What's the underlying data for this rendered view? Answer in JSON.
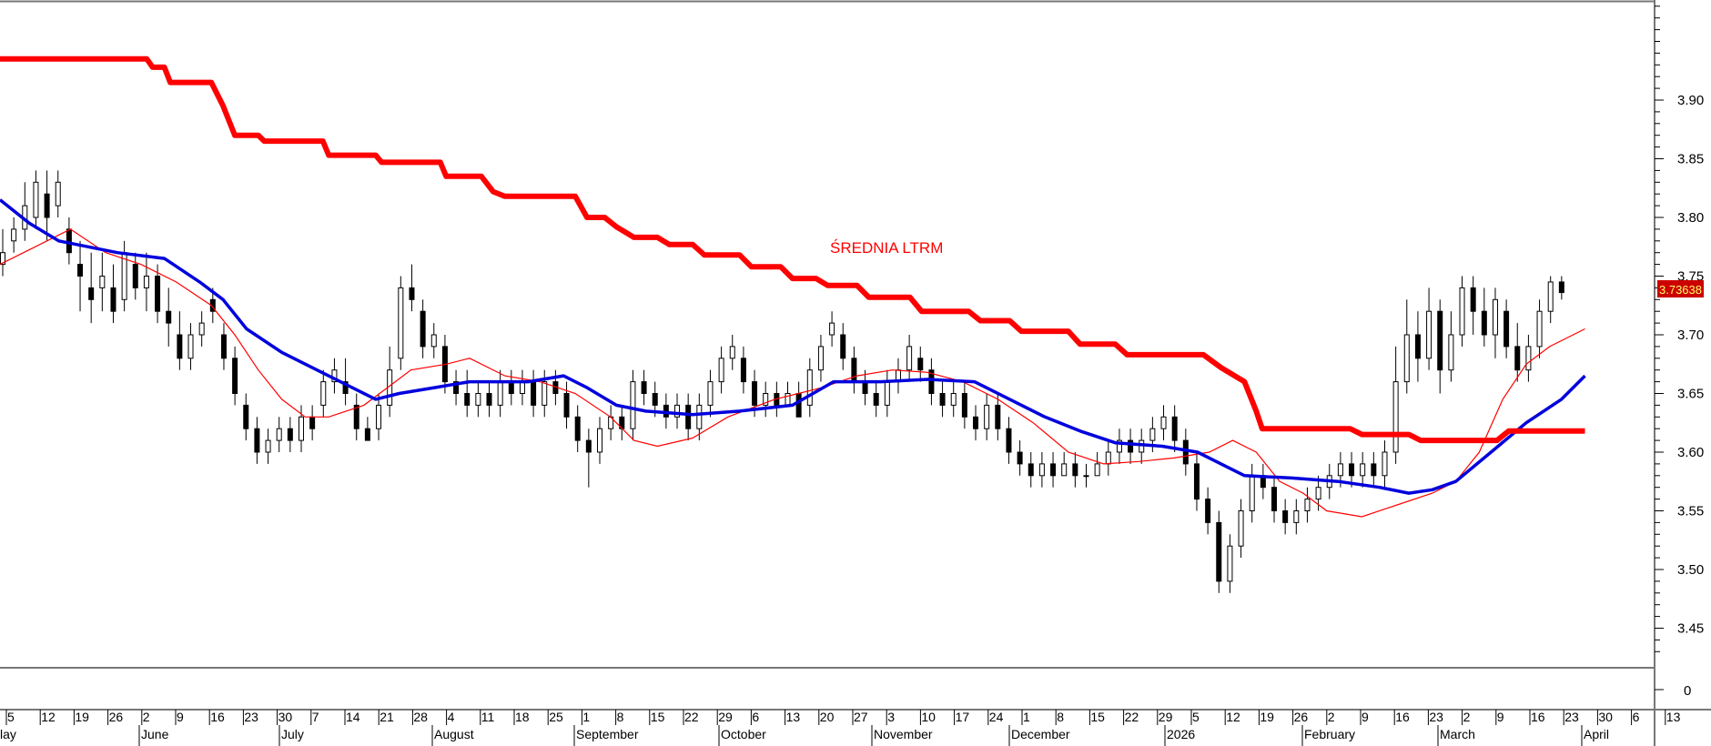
{
  "chart_data": {
    "type": "candlestick",
    "annotation": "ŚREDNIA LTRM",
    "last_price_label": "3.73638",
    "colors": {
      "ltrm_line": "#ff0000",
      "annotation": "#ff0000",
      "ma_long": "#0000dd",
      "ma_short": "#ff0000",
      "candle": "#000000",
      "price_label_bg": "#cc0000",
      "price_label_text": "#ffff66"
    },
    "price_axis": {
      "ticks": [
        "3.90",
        "3.85",
        "3.80",
        "3.75",
        "3.70",
        "3.65",
        "3.60",
        "3.55",
        "3.50",
        "3.45"
      ],
      "range": [
        3.4,
        3.99
      ]
    },
    "volume_axis": {
      "ticks": [
        "0"
      ]
    },
    "date_ticks": [
      "5",
      "12",
      "19",
      "26",
      "2",
      "9",
      "16",
      "23",
      "30",
      "7",
      "14",
      "21",
      "28",
      "4",
      "11",
      "18",
      "25",
      "1",
      "8",
      "15",
      "22",
      "29",
      "6",
      "13",
      "20",
      "27",
      "3",
      "10",
      "17",
      "24",
      "1",
      "8",
      "15",
      "22",
      "29",
      "5",
      "12",
      "19",
      "26",
      "2",
      "9",
      "16",
      "23",
      "2",
      "9",
      "16",
      "23",
      "30",
      "6",
      "13"
    ],
    "months": [
      "lay",
      "June",
      "July",
      "August",
      "September",
      "October",
      "November",
      "December",
      "2026",
      "February",
      "March",
      "April"
    ],
    "ltrm_line": [
      [
        0,
        3.935
      ],
      [
        25,
        3.935
      ],
      [
        26,
        3.928
      ],
      [
        28,
        3.928
      ],
      [
        29,
        3.915
      ],
      [
        36,
        3.915
      ],
      [
        38,
        3.895
      ],
      [
        40,
        3.87
      ],
      [
        44,
        3.87
      ],
      [
        45,
        3.865
      ],
      [
        55,
        3.865
      ],
      [
        56,
        3.853
      ],
      [
        64,
        3.853
      ],
      [
        65,
        3.847
      ],
      [
        75,
        3.847
      ],
      [
        76,
        3.835
      ],
      [
        82,
        3.835
      ],
      [
        84,
        3.822
      ],
      [
        86,
        3.818
      ],
      [
        98,
        3.818
      ],
      [
        100,
        3.8
      ],
      [
        103,
        3.8
      ],
      [
        105,
        3.792
      ],
      [
        108,
        3.783
      ],
      [
        112,
        3.783
      ],
      [
        114,
        3.777
      ],
      [
        118,
        3.777
      ],
      [
        120,
        3.768
      ],
      [
        126,
        3.768
      ],
      [
        128,
        3.758
      ],
      [
        133,
        3.758
      ],
      [
        135,
        3.748
      ],
      [
        139,
        3.748
      ],
      [
        141,
        3.742
      ],
      [
        146,
        3.742
      ],
      [
        148,
        3.732
      ],
      [
        155,
        3.732
      ],
      [
        157,
        3.72
      ],
      [
        165,
        3.72
      ],
      [
        167,
        3.712
      ],
      [
        172,
        3.712
      ],
      [
        174,
        3.703
      ],
      [
        182,
        3.703
      ],
      [
        184,
        3.692
      ],
      [
        190,
        3.692
      ],
      [
        192,
        3.683
      ],
      [
        205,
        3.683
      ],
      [
        208,
        3.672
      ],
      [
        212,
        3.66
      ],
      [
        214,
        3.635
      ],
      [
        215,
        3.62
      ],
      [
        230,
        3.62
      ],
      [
        232,
        3.615
      ],
      [
        240,
        3.615
      ],
      [
        242,
        3.61
      ],
      [
        255,
        3.61
      ],
      [
        257,
        3.618
      ],
      [
        270,
        3.618
      ]
    ],
    "ma_long_line": [
      [
        0,
        3.815
      ],
      [
        5,
        3.795
      ],
      [
        10,
        3.78
      ],
      [
        20,
        3.77
      ],
      [
        28,
        3.765
      ],
      [
        34,
        3.745
      ],
      [
        38,
        3.73
      ],
      [
        42,
        3.705
      ],
      [
        48,
        3.685
      ],
      [
        54,
        3.67
      ],
      [
        60,
        3.655
      ],
      [
        64,
        3.645
      ],
      [
        68,
        3.65
      ],
      [
        74,
        3.655
      ],
      [
        80,
        3.66
      ],
      [
        90,
        3.66
      ],
      [
        96,
        3.665
      ],
      [
        100,
        3.655
      ],
      [
        105,
        3.64
      ],
      [
        110,
        3.635
      ],
      [
        118,
        3.632
      ],
      [
        126,
        3.635
      ],
      [
        135,
        3.64
      ],
      [
        142,
        3.66
      ],
      [
        150,
        3.66
      ],
      [
        158,
        3.662
      ],
      [
        166,
        3.66
      ],
      [
        172,
        3.645
      ],
      [
        178,
        3.63
      ],
      [
        184,
        3.618
      ],
      [
        190,
        3.608
      ],
      [
        198,
        3.605
      ],
      [
        204,
        3.6
      ],
      [
        208,
        3.59
      ],
      [
        212,
        3.58
      ],
      [
        220,
        3.578
      ],
      [
        228,
        3.575
      ],
      [
        235,
        3.57
      ],
      [
        240,
        3.565
      ],
      [
        244,
        3.568
      ],
      [
        248,
        3.575
      ],
      [
        254,
        3.6
      ],
      [
        260,
        3.625
      ],
      [
        266,
        3.645
      ],
      [
        270,
        3.665
      ]
    ],
    "ma_short_line": [
      [
        0,
        3.76
      ],
      [
        6,
        3.775
      ],
      [
        12,
        3.79
      ],
      [
        18,
        3.77
      ],
      [
        24,
        3.76
      ],
      [
        30,
        3.745
      ],
      [
        36,
        3.725
      ],
      [
        40,
        3.7
      ],
      [
        44,
        3.67
      ],
      [
        48,
        3.645
      ],
      [
        52,
        3.63
      ],
      [
        56,
        3.63
      ],
      [
        62,
        3.64
      ],
      [
        66,
        3.655
      ],
      [
        70,
        3.67
      ],
      [
        76,
        3.675
      ],
      [
        80,
        3.68
      ],
      [
        86,
        3.665
      ],
      [
        92,
        3.66
      ],
      [
        98,
        3.65
      ],
      [
        104,
        3.63
      ],
      [
        108,
        3.61
      ],
      [
        112,
        3.605
      ],
      [
        118,
        3.612
      ],
      [
        124,
        3.63
      ],
      [
        132,
        3.645
      ],
      [
        140,
        3.655
      ],
      [
        146,
        3.665
      ],
      [
        152,
        3.67
      ],
      [
        158,
        3.668
      ],
      [
        164,
        3.66
      ],
      [
        170,
        3.645
      ],
      [
        176,
        3.625
      ],
      [
        182,
        3.6
      ],
      [
        188,
        3.59
      ],
      [
        194,
        3.592
      ],
      [
        200,
        3.595
      ],
      [
        206,
        3.6
      ],
      [
        210,
        3.61
      ],
      [
        214,
        3.6
      ],
      [
        218,
        3.575
      ],
      [
        222,
        3.565
      ],
      [
        226,
        3.55
      ],
      [
        232,
        3.545
      ],
      [
        238,
        3.555
      ],
      [
        244,
        3.565
      ],
      [
        248,
        3.575
      ],
      [
        252,
        3.6
      ],
      [
        256,
        3.645
      ],
      [
        260,
        3.675
      ],
      [
        264,
        3.69
      ],
      [
        268,
        3.7
      ],
      [
        270,
        3.705
      ]
    ],
    "candles": [
      [
        3.76,
        3.77,
        3.79,
        3.75
      ],
      [
        3.78,
        3.79,
        3.8,
        3.77
      ],
      [
        3.79,
        3.81,
        3.83,
        3.78
      ],
      [
        3.8,
        3.83,
        3.84,
        3.79
      ],
      [
        3.82,
        3.8,
        3.84,
        3.78
      ],
      [
        3.81,
        3.83,
        3.84,
        3.8
      ],
      [
        3.79,
        3.77,
        3.8,
        3.76
      ],
      [
        3.76,
        3.75,
        3.78,
        3.72
      ],
      [
        3.74,
        3.73,
        3.77,
        3.71
      ],
      [
        3.74,
        3.75,
        3.77,
        3.72
      ],
      [
        3.74,
        3.72,
        3.76,
        3.71
      ],
      [
        3.73,
        3.77,
        3.78,
        3.72
      ],
      [
        3.76,
        3.74,
        3.77,
        3.73
      ],
      [
        3.74,
        3.75,
        3.77,
        3.72
      ],
      [
        3.75,
        3.72,
        3.76,
        3.71
      ],
      [
        3.72,
        3.71,
        3.74,
        3.69
      ],
      [
        3.7,
        3.68,
        3.72,
        3.67
      ],
      [
        3.68,
        3.7,
        3.71,
        3.67
      ],
      [
        3.7,
        3.71,
        3.72,
        3.69
      ],
      [
        3.73,
        3.72,
        3.74,
        3.71
      ],
      [
        3.7,
        3.68,
        3.71,
        3.67
      ],
      [
        3.68,
        3.65,
        3.69,
        3.64
      ],
      [
        3.64,
        3.62,
        3.65,
        3.61
      ],
      [
        3.62,
        3.6,
        3.63,
        3.59
      ],
      [
        3.6,
        3.61,
        3.62,
        3.59
      ],
      [
        3.61,
        3.62,
        3.63,
        3.6
      ],
      [
        3.62,
        3.61,
        3.63,
        3.6
      ],
      [
        3.61,
        3.63,
        3.64,
        3.6
      ],
      [
        3.63,
        3.62,
        3.64,
        3.61
      ],
      [
        3.64,
        3.66,
        3.67,
        3.63
      ],
      [
        3.66,
        3.67,
        3.68,
        3.65
      ],
      [
        3.66,
        3.65,
        3.68,
        3.64
      ],
      [
        3.64,
        3.62,
        3.65,
        3.61
      ],
      [
        3.62,
        3.61,
        3.63,
        3.61
      ],
      [
        3.62,
        3.64,
        3.65,
        3.61
      ],
      [
        3.64,
        3.67,
        3.69,
        3.63
      ],
      [
        3.68,
        3.74,
        3.75,
        3.67
      ],
      [
        3.74,
        3.73,
        3.76,
        3.72
      ],
      [
        3.72,
        3.69,
        3.73,
        3.68
      ],
      [
        3.69,
        3.7,
        3.71,
        3.68
      ],
      [
        3.69,
        3.66,
        3.7,
        3.65
      ],
      [
        3.66,
        3.65,
        3.67,
        3.64
      ],
      [
        3.65,
        3.64,
        3.67,
        3.63
      ],
      [
        3.64,
        3.65,
        3.66,
        3.63
      ],
      [
        3.65,
        3.64,
        3.66,
        3.63
      ],
      [
        3.64,
        3.66,
        3.67,
        3.63
      ],
      [
        3.66,
        3.65,
        3.67,
        3.64
      ],
      [
        3.65,
        3.66,
        3.67,
        3.64
      ],
      [
        3.66,
        3.64,
        3.67,
        3.63
      ],
      [
        3.64,
        3.66,
        3.67,
        3.63
      ],
      [
        3.66,
        3.65,
        3.67,
        3.64
      ],
      [
        3.65,
        3.63,
        3.66,
        3.62
      ],
      [
        3.63,
        3.61,
        3.64,
        3.6
      ],
      [
        3.61,
        3.6,
        3.62,
        3.57
      ],
      [
        3.6,
        3.62,
        3.63,
        3.59
      ],
      [
        3.62,
        3.63,
        3.64,
        3.61
      ],
      [
        3.63,
        3.62,
        3.64,
        3.61
      ],
      [
        3.62,
        3.66,
        3.67,
        3.61
      ],
      [
        3.66,
        3.65,
        3.67,
        3.64
      ],
      [
        3.65,
        3.64,
        3.66,
        3.63
      ],
      [
        3.64,
        3.63,
        3.65,
        3.62
      ],
      [
        3.63,
        3.64,
        3.65,
        3.62
      ],
      [
        3.64,
        3.62,
        3.65,
        3.61
      ],
      [
        3.62,
        3.64,
        3.65,
        3.61
      ],
      [
        3.64,
        3.66,
        3.67,
        3.63
      ],
      [
        3.66,
        3.68,
        3.69,
        3.65
      ],
      [
        3.68,
        3.69,
        3.7,
        3.67
      ],
      [
        3.68,
        3.66,
        3.69,
        3.65
      ],
      [
        3.66,
        3.64,
        3.67,
        3.63
      ],
      [
        3.64,
        3.65,
        3.66,
        3.63
      ],
      [
        3.65,
        3.64,
        3.66,
        3.63
      ],
      [
        3.64,
        3.65,
        3.66,
        3.64
      ],
      [
        3.65,
        3.63,
        3.66,
        3.63
      ],
      [
        3.64,
        3.67,
        3.68,
        3.63
      ],
      [
        3.67,
        3.69,
        3.7,
        3.66
      ],
      [
        3.7,
        3.71,
        3.72,
        3.69
      ],
      [
        3.7,
        3.68,
        3.71,
        3.67
      ],
      [
        3.68,
        3.66,
        3.69,
        3.65
      ],
      [
        3.66,
        3.65,
        3.67,
        3.64
      ],
      [
        3.65,
        3.64,
        3.66,
        3.63
      ],
      [
        3.64,
        3.66,
        3.67,
        3.63
      ],
      [
        3.66,
        3.67,
        3.68,
        3.65
      ],
      [
        3.67,
        3.69,
        3.7,
        3.66
      ],
      [
        3.68,
        3.67,
        3.69,
        3.66
      ],
      [
        3.67,
        3.65,
        3.68,
        3.64
      ],
      [
        3.65,
        3.64,
        3.66,
        3.63
      ],
      [
        3.64,
        3.65,
        3.66,
        3.63
      ],
      [
        3.65,
        3.63,
        3.66,
        3.62
      ],
      [
        3.63,
        3.62,
        3.64,
        3.61
      ],
      [
        3.62,
        3.64,
        3.65,
        3.61
      ],
      [
        3.64,
        3.62,
        3.65,
        3.61
      ],
      [
        3.62,
        3.6,
        3.63,
        3.59
      ],
      [
        3.6,
        3.59,
        3.61,
        3.58
      ],
      [
        3.59,
        3.58,
        3.6,
        3.57
      ],
      [
        3.58,
        3.59,
        3.6,
        3.57
      ],
      [
        3.59,
        3.58,
        3.6,
        3.57
      ],
      [
        3.58,
        3.59,
        3.6,
        3.58
      ],
      [
        3.59,
        3.58,
        3.6,
        3.57
      ],
      [
        3.58,
        3.58,
        3.59,
        3.57
      ],
      [
        3.58,
        3.59,
        3.6,
        3.58
      ],
      [
        3.59,
        3.6,
        3.61,
        3.58
      ],
      [
        3.6,
        3.61,
        3.62,
        3.59
      ],
      [
        3.61,
        3.6,
        3.62,
        3.59
      ],
      [
        3.6,
        3.61,
        3.62,
        3.59
      ],
      [
        3.61,
        3.62,
        3.63,
        3.6
      ],
      [
        3.62,
        3.63,
        3.64,
        3.61
      ],
      [
        3.63,
        3.61,
        3.64,
        3.6
      ],
      [
        3.61,
        3.59,
        3.62,
        3.58
      ],
      [
        3.59,
        3.56,
        3.6,
        3.55
      ],
      [
        3.56,
        3.54,
        3.57,
        3.53
      ],
      [
        3.54,
        3.49,
        3.55,
        3.48
      ],
      [
        3.49,
        3.52,
        3.53,
        3.48
      ],
      [
        3.52,
        3.55,
        3.56,
        3.51
      ],
      [
        3.55,
        3.58,
        3.59,
        3.54
      ],
      [
        3.58,
        3.57,
        3.59,
        3.56
      ],
      [
        3.57,
        3.55,
        3.58,
        3.54
      ],
      [
        3.55,
        3.54,
        3.56,
        3.53
      ],
      [
        3.54,
        3.55,
        3.56,
        3.53
      ],
      [
        3.55,
        3.56,
        3.57,
        3.54
      ],
      [
        3.56,
        3.57,
        3.58,
        3.55
      ],
      [
        3.57,
        3.58,
        3.59,
        3.56
      ],
      [
        3.58,
        3.59,
        3.6,
        3.57
      ],
      [
        3.59,
        3.58,
        3.6,
        3.57
      ],
      [
        3.58,
        3.59,
        3.6,
        3.57
      ],
      [
        3.59,
        3.58,
        3.6,
        3.57
      ],
      [
        3.58,
        3.6,
        3.61,
        3.57
      ],
      [
        3.6,
        3.66,
        3.69,
        3.59
      ],
      [
        3.66,
        3.7,
        3.73,
        3.65
      ],
      [
        3.7,
        3.68,
        3.72,
        3.66
      ],
      [
        3.68,
        3.72,
        3.74,
        3.67
      ],
      [
        3.72,
        3.67,
        3.73,
        3.65
      ],
      [
        3.67,
        3.7,
        3.72,
        3.66
      ],
      [
        3.7,
        3.74,
        3.75,
        3.69
      ],
      [
        3.74,
        3.72,
        3.75,
        3.7
      ],
      [
        3.72,
        3.7,
        3.74,
        3.69
      ],
      [
        3.7,
        3.73,
        3.74,
        3.68
      ],
      [
        3.72,
        3.69,
        3.73,
        3.68
      ],
      [
        3.69,
        3.67,
        3.71,
        3.66
      ],
      [
        3.67,
        3.69,
        3.7,
        3.66
      ],
      [
        3.69,
        3.72,
        3.73,
        3.68
      ],
      [
        3.72,
        3.745,
        3.75,
        3.71
      ],
      [
        3.745,
        3.736,
        3.75,
        3.73
      ]
    ]
  }
}
